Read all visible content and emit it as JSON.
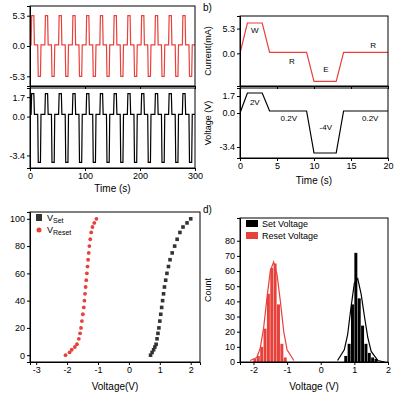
{
  "chart_data": [
    {
      "type": "line",
      "tick_labels": "y",
      "x": [
        0,
        2,
        3,
        7,
        8,
        14,
        15,
        19,
        20,
        27,
        28,
        32,
        33,
        39,
        40,
        44,
        45,
        52,
        53,
        57,
        58,
        64,
        65,
        69,
        70,
        77,
        78,
        82,
        83,
        89,
        90,
        94,
        95,
        102,
        103,
        107,
        108,
        114,
        115,
        119,
        120,
        127,
        128,
        132,
        133,
        139,
        140,
        144,
        145,
        152,
        153,
        157,
        158,
        164,
        165,
        169,
        170,
        177,
        178,
        182,
        183,
        189,
        190,
        194,
        195,
        202,
        203,
        207,
        208,
        214,
        215,
        219,
        220,
        227,
        228,
        232,
        233,
        239,
        240,
        244,
        245,
        252,
        253,
        257,
        258,
        264,
        265,
        269,
        270,
        277,
        278,
        282,
        283,
        289,
        290,
        294,
        295,
        300
      ],
      "series": [
        {
          "color": "#e8403a",
          "values": [
            0.2,
            0.2,
            5.3,
            5.3,
            0.2,
            0.2,
            -5.3,
            -5.3,
            0.2,
            0.2,
            5.3,
            5.3,
            0.2,
            0.2,
            -5.3,
            -5.3,
            0.2,
            0.2,
            5.3,
            5.3,
            0.2,
            0.2,
            -5.3,
            -5.3,
            0.2,
            0.2,
            5.3,
            5.3,
            0.2,
            0.2,
            -5.3,
            -5.3,
            0.2,
            0.2,
            5.3,
            5.3,
            0.2,
            0.2,
            -5.3,
            -5.3,
            0.2,
            0.2,
            5.3,
            5.3,
            0.2,
            0.2,
            -5.3,
            -5.3,
            0.2,
            0.2,
            5.3,
            5.3,
            0.2,
            0.2,
            -5.3,
            -5.3,
            0.2,
            0.2,
            5.3,
            5.3,
            0.2,
            0.2,
            -5.3,
            -5.3,
            0.2,
            0.2,
            5.3,
            5.3,
            0.2,
            0.2,
            -5.3,
            -5.3,
            0.2,
            0.2,
            5.3,
            5.3,
            0.2,
            0.2,
            -5.3,
            -5.3,
            0.2,
            0.2,
            5.3,
            5.3,
            0.2,
            0.2,
            -5.3,
            -5.3,
            0.2,
            0.2,
            5.3,
            5.3,
            0.2,
            0.2,
            -5.3,
            -5.3,
            0.2,
            0.2
          ]
        }
      ],
      "xlim": [
        0,
        300
      ],
      "xticks": [
        0,
        100,
        200,
        300
      ],
      "ylim": [
        -7,
        7
      ],
      "yticks": [
        -5.3,
        {
          "value": 0,
          "label": "0.0"
        },
        5.3
      ]
    },
    {
      "type": "line",
      "xlabel": "Time (s)",
      "x": [
        0,
        2,
        3,
        7,
        8,
        14,
        15,
        19,
        20,
        27,
        28,
        32,
        33,
        39,
        40,
        44,
        45,
        52,
        53,
        57,
        58,
        64,
        65,
        69,
        70,
        77,
        78,
        82,
        83,
        89,
        90,
        94,
        95,
        102,
        103,
        107,
        108,
        114,
        115,
        119,
        120,
        127,
        128,
        132,
        133,
        139,
        140,
        144,
        145,
        152,
        153,
        157,
        158,
        164,
        165,
        169,
        170,
        177,
        178,
        182,
        183,
        189,
        190,
        194,
        195,
        202,
        203,
        207,
        208,
        214,
        215,
        219,
        220,
        227,
        228,
        232,
        233,
        239,
        240,
        244,
        245,
        252,
        253,
        257,
        258,
        264,
        265,
        269,
        270,
        277,
        278,
        282,
        283,
        289,
        290,
        294,
        295,
        300
      ],
      "series": [
        {
          "color": "#000000",
          "values": [
            0.2,
            0.2,
            2,
            2,
            0.2,
            0.2,
            -4,
            -4,
            0.2,
            0.2,
            2,
            2,
            0.2,
            0.2,
            -4,
            -4,
            0.2,
            0.2,
            2,
            2,
            0.2,
            0.2,
            -4,
            -4,
            0.2,
            0.2,
            2,
            2,
            0.2,
            0.2,
            -4,
            -4,
            0.2,
            0.2,
            2,
            2,
            0.2,
            0.2,
            -4,
            -4,
            0.2,
            0.2,
            2,
            2,
            0.2,
            0.2,
            -4,
            -4,
            0.2,
            0.2,
            2,
            2,
            0.2,
            0.2,
            -4,
            -4,
            0.2,
            0.2,
            2,
            2,
            0.2,
            0.2,
            -4,
            -4,
            0.2,
            0.2,
            2,
            2,
            0.2,
            0.2,
            -4,
            -4,
            0.2,
            0.2,
            2,
            2,
            0.2,
            0.2,
            -4,
            -4,
            0.2,
            0.2,
            2,
            2,
            0.2,
            0.2,
            -4,
            -4,
            0.2,
            0.2,
            2,
            2,
            0.2,
            0.2,
            -4,
            -4,
            0.2,
            0.2
          ]
        }
      ],
      "xlim": [
        0,
        300
      ],
      "xticks": [
        0,
        100,
        200,
        300
      ],
      "ylim": [
        -4.5,
        2.5
      ],
      "yticks": [
        -3.4,
        {
          "value": 0,
          "label": "0.0"
        },
        1.7
      ]
    },
    {
      "type": "line",
      "title": "b)",
      "ylabel": "Current(mA)",
      "tick_labels": "y",
      "x": [
        0,
        1,
        3,
        4,
        9,
        10,
        13,
        14,
        20
      ],
      "series": [
        {
          "color": "#e8403a",
          "values": [
            0,
            6.5,
            6.5,
            0.2,
            0.2,
            -6,
            -6,
            0.2,
            0.2
          ]
        }
      ],
      "xlim": [
        0,
        20
      ],
      "xticks": [
        0,
        5,
        10,
        15,
        20
      ],
      "ylim": [
        -7,
        8
      ],
      "yticks": [
        {
          "value": 0,
          "label": "0.0"
        },
        5.3
      ],
      "annotations": [
        {
          "text": "W"
        },
        {
          "text": "R"
        },
        {
          "text": "E"
        },
        {
          "text": "R"
        }
      ]
    },
    {
      "type": "line",
      "xlabel": "Time (s)",
      "ylabel": "Voltage (V)",
      "x": [
        0,
        1,
        3,
        4,
        9,
        10,
        13,
        14,
        20
      ],
      "series": [
        {
          "color": "#000000",
          "values": [
            0,
            2,
            2,
            0.2,
            0.2,
            -4,
            -4,
            0.2,
            0.2
          ]
        }
      ],
      "xlim": [
        0,
        20
      ],
      "xticks": [
        0,
        5,
        10,
        15,
        20
      ],
      "ylim": [
        -4.5,
        2.5
      ],
      "yticks": [
        -3.4,
        {
          "value": 0,
          "label": "0.0"
        },
        1.7
      ],
      "annotations": [
        {
          "text": "2V"
        },
        {
          "text": "0.2V"
        },
        {
          "text": "-4V"
        },
        {
          "text": "0.2V"
        }
      ]
    },
    {
      "type": "scatter",
      "xlabel": "Voltage(V)",
      "legend": "top-left",
      "series": [
        {
          "name": "VSet",
          "color": "#333333",
          "marker": "square",
          "x": [
            0.7,
            0.75,
            0.8,
            0.84,
            0.88,
            0.91,
            0.94,
            0.97,
            1.0,
            1.03,
            1.06,
            1.09,
            1.12,
            1.15,
            1.19,
            1.23,
            1.28,
            1.33,
            1.4,
            1.48,
            1.56,
            1.65,
            1.75,
            1.88,
            2.0
          ],
          "values": [
            0,
            2,
            4,
            6,
            8,
            12,
            16,
            20,
            25,
            30,
            35,
            40,
            45,
            50,
            55,
            60,
            65,
            70,
            75,
            80,
            85,
            90,
            94,
            97,
            100
          ]
        },
        {
          "name": "VReset",
          "color": "#e8403a",
          "marker": "circle",
          "x": [
            -2.05,
            -1.92,
            -1.85,
            -1.75,
            -1.68,
            -1.62,
            -1.58,
            -1.55,
            -1.52,
            -1.49,
            -1.46,
            -1.44,
            -1.42,
            -1.4,
            -1.38,
            -1.36,
            -1.34,
            -1.32,
            -1.3,
            -1.28,
            -1.25,
            -1.22,
            -1.18,
            -1.12,
            -1.05
          ],
          "values": [
            0,
            2,
            4,
            6,
            8,
            12,
            16,
            20,
            25,
            30,
            35,
            40,
            45,
            50,
            55,
            60,
            65,
            70,
            75,
            80,
            85,
            90,
            94,
            97,
            100
          ]
        }
      ],
      "xlim": [
        -3.2,
        2.3
      ],
      "xticks": [
        -3,
        -2,
        -1,
        0,
        1,
        2
      ],
      "ylim": [
        -5,
        105
      ],
      "yticks": [
        0,
        20,
        40,
        60,
        80,
        100
      ]
    },
    {
      "type": "histogram",
      "title": "d)",
      "xlabel": "Voltage (V)",
      "ylabel": "Count",
      "legend": "top-left",
      "series": [
        {
          "name": "Set Voltage",
          "color": "#000000",
          "bins": [
            0.7,
            0.8,
            0.9,
            1.0,
            1.1,
            1.2,
            1.3,
            1.4,
            1.5,
            1.6,
            1.7
          ],
          "values": [
            4,
            12,
            38,
            72,
            42,
            24,
            12,
            6,
            3,
            2
          ]
        },
        {
          "name": "Reset Voltage",
          "color": "#e8403a",
          "bins": [
            -2.0,
            -1.9,
            -1.8,
            -1.7,
            -1.6,
            -1.5,
            -1.4,
            -1.3,
            -1.2,
            -1.1,
            -1.0
          ],
          "values": [
            2,
            4,
            10,
            22,
            45,
            62,
            65,
            38,
            12,
            3
          ]
        },
        {
          "type": "line",
          "color": "#000000",
          "x": [
            0.5,
            0.7,
            0.8,
            0.9,
            1.0,
            1.1,
            1.2,
            1.3,
            1.4,
            1.5,
            1.7,
            1.9
          ],
          "values": [
            1,
            8,
            18,
            36,
            52,
            55,
            45,
            30,
            16,
            7,
            1,
            0
          ]
        },
        {
          "type": "line",
          "color": "#e8403a",
          "x": [
            -2.1,
            -1.9,
            -1.8,
            -1.7,
            -1.6,
            -1.5,
            -1.4,
            -1.3,
            -1.2,
            -1.1,
            -1.0,
            -0.8
          ],
          "values": [
            1,
            3,
            9,
            22,
            42,
            60,
            66,
            58,
            40,
            20,
            8,
            1
          ]
        }
      ],
      "xlim": [
        -2.4,
        2.0
      ],
      "xticks": [
        -2,
        -1,
        0,
        1,
        2
      ],
      "ylim": [
        0,
        95
      ],
      "yticks": [
        0,
        10,
        20,
        30,
        40,
        50,
        60,
        70,
        80
      ]
    }
  ]
}
